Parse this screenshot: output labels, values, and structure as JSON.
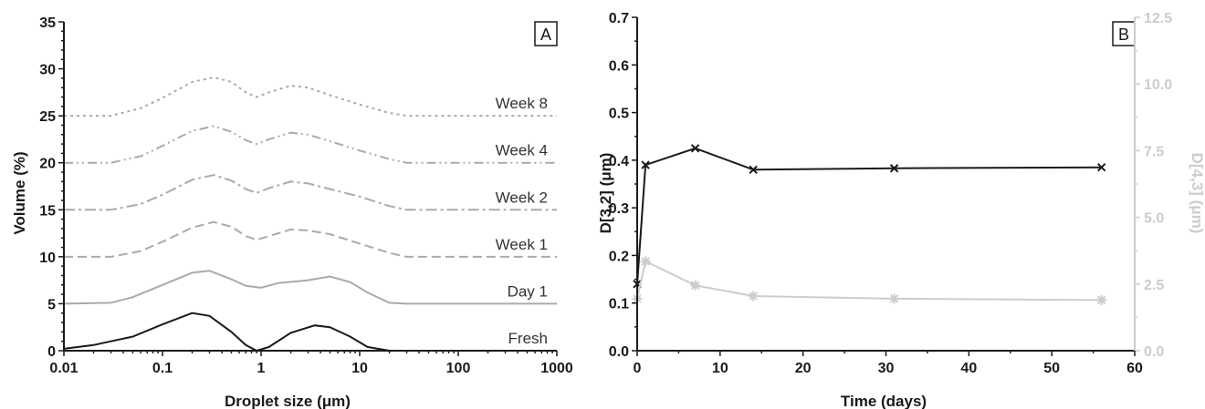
{
  "panels": {
    "a": {
      "label": "A"
    },
    "b": {
      "label": "B"
    }
  },
  "chart_data": [
    {
      "type": "line",
      "panel": "A",
      "xlabel": "Droplet size (μm)",
      "ylabel": "Volume (%)",
      "x_scale": "log",
      "xlim": [
        0.01,
        1000
      ],
      "ylim": [
        0,
        35
      ],
      "x_ticks": [
        0.01,
        0.1,
        1,
        10,
        100,
        1000
      ],
      "x_tick_labels": [
        "0.01",
        "0.1",
        "1",
        "10",
        "100",
        "1000"
      ],
      "y_ticks": [
        0,
        5,
        10,
        15,
        20,
        25,
        30,
        35
      ],
      "y_tick_labels": [
        "0",
        "5",
        "10",
        "15",
        "20",
        "25",
        "30",
        "35"
      ],
      "series": [
        {
          "name": "Fresh",
          "color": "#1a1a1a",
          "dash": "solid",
          "x": [
            0.01,
            0.02,
            0.05,
            0.1,
            0.2,
            0.3,
            0.5,
            0.7,
            0.9,
            1.2,
            2,
            3.5,
            5,
            8,
            12,
            20
          ],
          "y": [
            0.2,
            0.6,
            1.5,
            2.8,
            4.0,
            3.7,
            2.0,
            0.6,
            0,
            0.4,
            1.9,
            2.7,
            2.5,
            1.5,
            0.4,
            0
          ]
        },
        {
          "name": "Day 1",
          "color": "#aaaaaa",
          "dash": "solid",
          "x": [
            0.01,
            0.03,
            0.05,
            0.1,
            0.2,
            0.3,
            0.5,
            0.7,
            1,
            1.5,
            3,
            5,
            8,
            12,
            20,
            30,
            1000
          ],
          "y": [
            5,
            5.1,
            5.7,
            7.0,
            8.3,
            8.5,
            7.6,
            6.9,
            6.7,
            7.2,
            7.5,
            7.9,
            7.3,
            6.2,
            5.1,
            5,
            5
          ]
        },
        {
          "name": "Week 1",
          "color": "#aaaaaa",
          "dash": "10,5",
          "x": [
            0.01,
            0.03,
            0.06,
            0.1,
            0.2,
            0.33,
            0.5,
            0.7,
            0.9,
            1.2,
            2,
            3,
            5,
            10,
            20,
            30,
            1000
          ],
          "y": [
            10,
            10,
            10.6,
            11.6,
            13.1,
            13.7,
            13.2,
            12.2,
            11.8,
            12.2,
            12.9,
            12.8,
            12.4,
            11.4,
            10.4,
            10,
            10
          ]
        },
        {
          "name": "Week 2",
          "color": "#aaaaaa",
          "dash": "12,4,3,4",
          "x": [
            0.01,
            0.03,
            0.06,
            0.1,
            0.2,
            0.33,
            0.5,
            0.7,
            0.9,
            1.2,
            2,
            3,
            5,
            10,
            20,
            30,
            1000
          ],
          "y": [
            15,
            15,
            15.6,
            16.6,
            18.2,
            18.7,
            18.1,
            17.2,
            16.8,
            17.3,
            18.0,
            17.8,
            17.2,
            16.4,
            15.4,
            15,
            15
          ]
        },
        {
          "name": "Week 4",
          "color": "#aaaaaa",
          "dash": "10,4,2,4,2,4",
          "x": [
            0.01,
            0.03,
            0.06,
            0.1,
            0.2,
            0.33,
            0.5,
            0.7,
            0.9,
            1.2,
            2,
            3,
            5,
            10,
            20,
            30,
            1000
          ],
          "y": [
            20,
            20,
            20.7,
            21.8,
            23.4,
            23.9,
            23.3,
            22.4,
            22.0,
            22.5,
            23.2,
            23.0,
            22.3,
            21.3,
            20.4,
            20,
            20
          ]
        },
        {
          "name": "Week 8",
          "color": "#aaaaaa",
          "dash": "3,4",
          "x": [
            0.01,
            0.03,
            0.06,
            0.1,
            0.2,
            0.33,
            0.5,
            0.7,
            0.9,
            1.2,
            2,
            3,
            5,
            10,
            20,
            30,
            1000
          ],
          "y": [
            25,
            25,
            25.8,
            26.9,
            28.6,
            29.1,
            28.6,
            27.5,
            27.0,
            27.5,
            28.2,
            28.0,
            27.2,
            26.2,
            25.3,
            25,
            25
          ]
        }
      ]
    },
    {
      "type": "line",
      "panel": "B",
      "xlabel": "Time (days)",
      "ylabel": "D[3,2] (μm)",
      "y2label": "D[4,3] (μm)",
      "xlim": [
        0,
        60
      ],
      "ylim": [
        0,
        0.7
      ],
      "y2lim": [
        0,
        12.5
      ],
      "x_ticks": [
        0,
        10,
        20,
        30,
        40,
        50,
        60
      ],
      "x_tick_labels": [
        "0",
        "10",
        "20",
        "30",
        "40",
        "50",
        "60"
      ],
      "y_ticks": [
        0,
        0.1,
        0.2,
        0.3,
        0.4,
        0.5,
        0.6,
        0.7
      ],
      "y_tick_labels": [
        "0.0",
        "0.1",
        "0.2",
        "0.3",
        "0.4",
        "0.5",
        "0.6",
        "0.7"
      ],
      "y2_ticks": [
        0,
        2.5,
        5,
        7.5,
        10,
        12.5
      ],
      "y2_tick_labels": [
        "0.0",
        "2.5",
        "5.0",
        "7.5",
        "10.0",
        "12.5"
      ],
      "series": [
        {
          "axis": "left",
          "marker": "x",
          "color": "#1a1a1a",
          "x": [
            0,
            1,
            7,
            14,
            31,
            56
          ],
          "y": [
            0.14,
            0.39,
            0.425,
            0.38,
            0.383,
            0.385
          ]
        },
        {
          "axis": "right",
          "marker": "asterisk",
          "color": "#cccccc",
          "x": [
            0,
            1,
            7,
            14,
            31,
            56
          ],
          "y": [
            1.95,
            3.35,
            2.45,
            2.05,
            1.95,
            1.9
          ]
        }
      ]
    }
  ]
}
